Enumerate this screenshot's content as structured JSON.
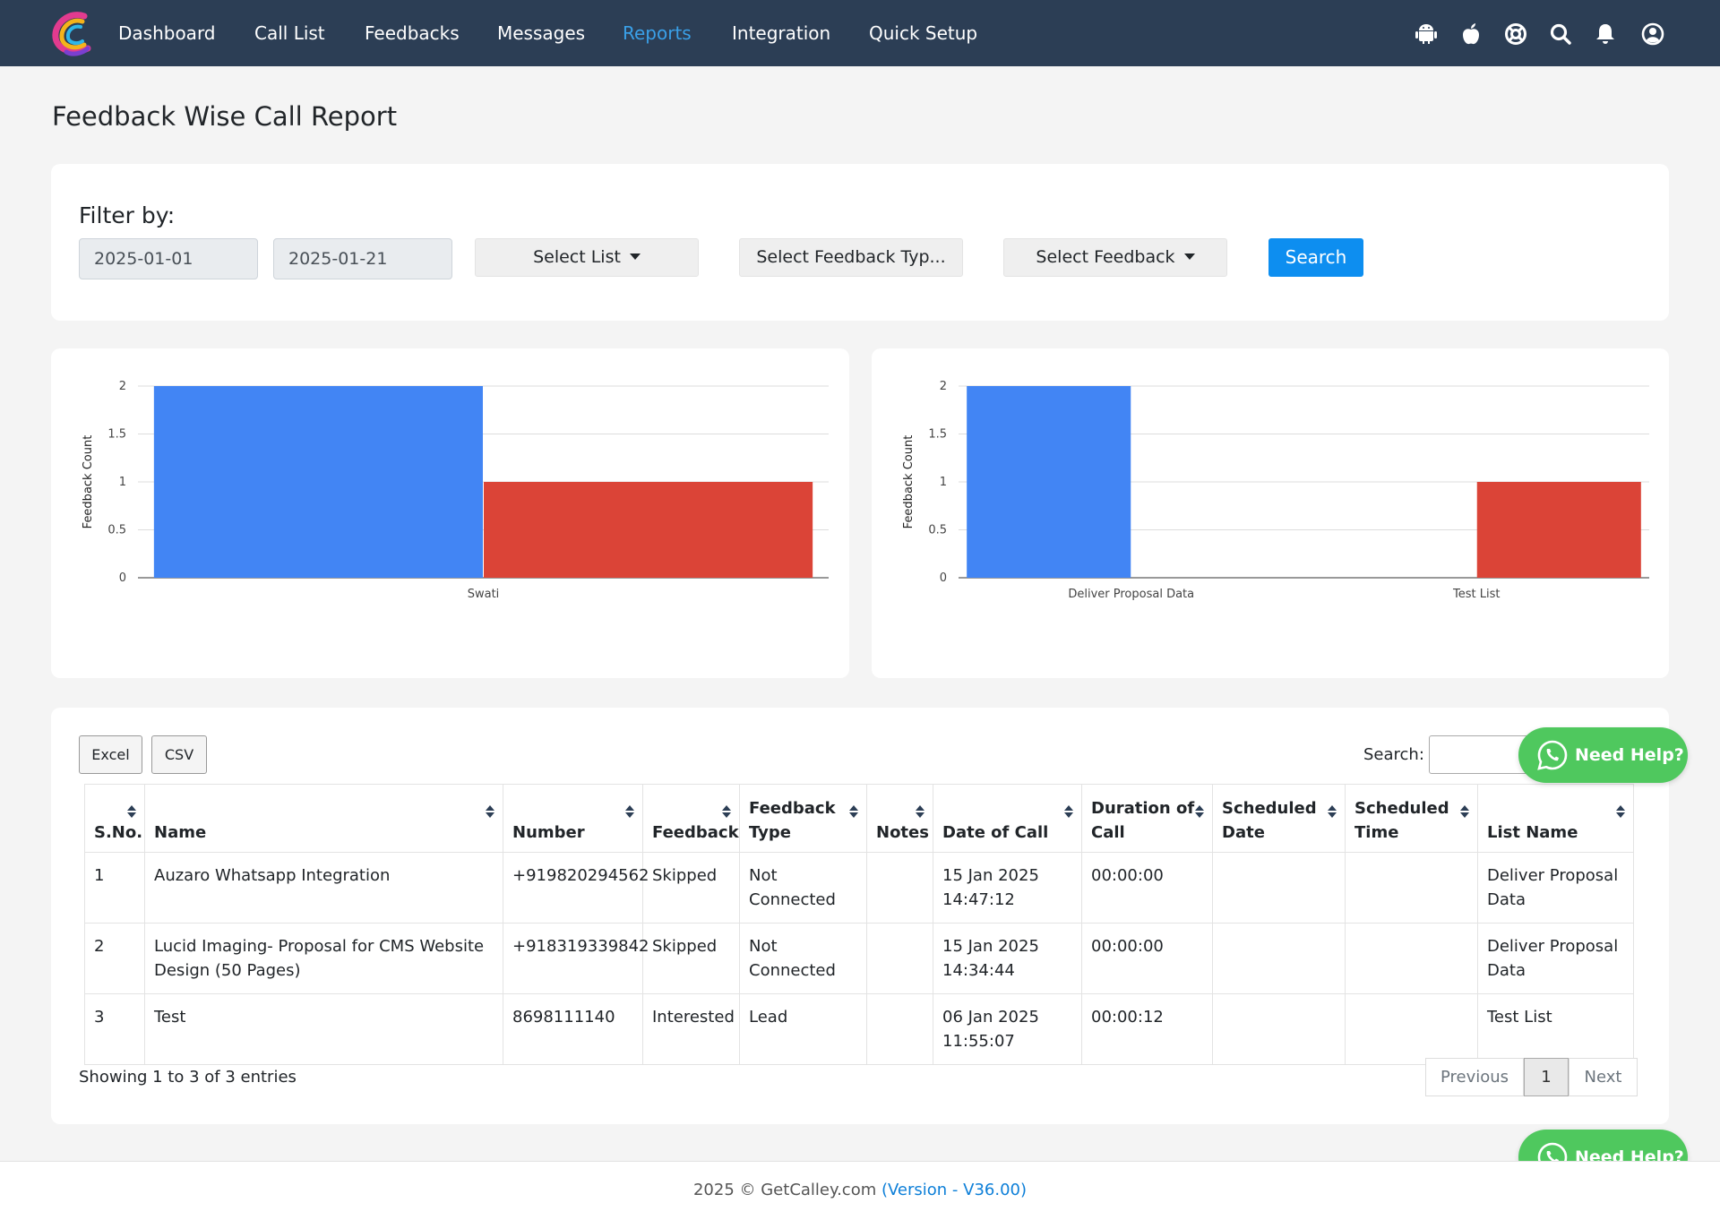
{
  "nav": {
    "items": [
      "Dashboard",
      "Call List",
      "Feedbacks",
      "Messages",
      "Reports",
      "Integration",
      "Quick Setup"
    ],
    "active_index": 4,
    "active_color": "#3aa0e8",
    "icons": [
      "android-icon",
      "apple-icon",
      "help-lifebuoy-icon",
      "search-icon",
      "bell-icon",
      "user-account-icon"
    ]
  },
  "page_title": "Feedback Wise Call Report",
  "filter": {
    "label": "Filter by:",
    "start_date": "2025-01-01",
    "end_date": "2025-01-21",
    "select_list": "Select List",
    "select_feedback_type": "Select Feedback Typ...",
    "select_feedback": "Select Feedback",
    "search_button": "Search"
  },
  "chart_data": [
    {
      "type": "bar",
      "categories": [
        "Swati"
      ],
      "series": [
        {
          "values": [
            2
          ],
          "color": "#4285f4"
        },
        {
          "values": [
            1
          ],
          "color": "#db4437"
        }
      ],
      "xlabel": "",
      "ylabel": "Feedback Count",
      "ylim": [
        0,
        2
      ],
      "yticks": [
        "0",
        "0.5",
        "1",
        "1.5",
        "2"
      ],
      "grid": true,
      "legend": "none"
    },
    {
      "type": "bar",
      "categories": [
        "Deliver Proposal Data",
        "Test List"
      ],
      "series": [
        {
          "values": [
            2,
            0
          ],
          "color": "#4285f4"
        },
        {
          "values": [
            0,
            1
          ],
          "color": "#db4437"
        }
      ],
      "xlabel": "",
      "ylabel": "Feedback Count",
      "ylim": [
        0,
        2
      ],
      "yticks": [
        "0",
        "0.5",
        "1",
        "1.5",
        "2"
      ],
      "grid": true,
      "legend": "none"
    }
  ],
  "table": {
    "export_buttons": [
      "Excel",
      "CSV"
    ],
    "search_label": "Search:",
    "columns": [
      "S.No.",
      "Name",
      "Number",
      "Feedback",
      "Feedback Type",
      "Notes",
      "Date of Call",
      "Duration of Call",
      "Scheduled Date",
      "Scheduled Time",
      "List Name"
    ],
    "rows": [
      [
        "1",
        "Auzaro Whatsapp Integration",
        "+919820294562",
        "Skipped",
        "Not Connected",
        "",
        "15 Jan 2025 14:47:12",
        "00:00:00",
        "",
        "",
        "Deliver Proposal Data"
      ],
      [
        "2",
        "Lucid Imaging- Proposal for CMS Website Design (50 Pages)",
        "+918319339842",
        "Skipped",
        "Not Connected",
        "",
        "15 Jan 2025 14:34:44",
        "00:00:00",
        "",
        "",
        "Deliver Proposal Data"
      ],
      [
        "3",
        "Test",
        "8698111140",
        "Interested",
        "Lead",
        "",
        "06 Jan 2025 11:55:07",
        "00:00:12",
        "",
        "",
        "Test List"
      ]
    ],
    "showing": "Showing 1 to 3 of 3 entries",
    "pagination": {
      "previous": "Previous",
      "current": "1",
      "next": "Next"
    }
  },
  "help_button": "Need Help?",
  "help_color": "#4fc85e",
  "footer": {
    "text": "2025 © GetCalley.com",
    "version": "(Version - V36.00)"
  }
}
